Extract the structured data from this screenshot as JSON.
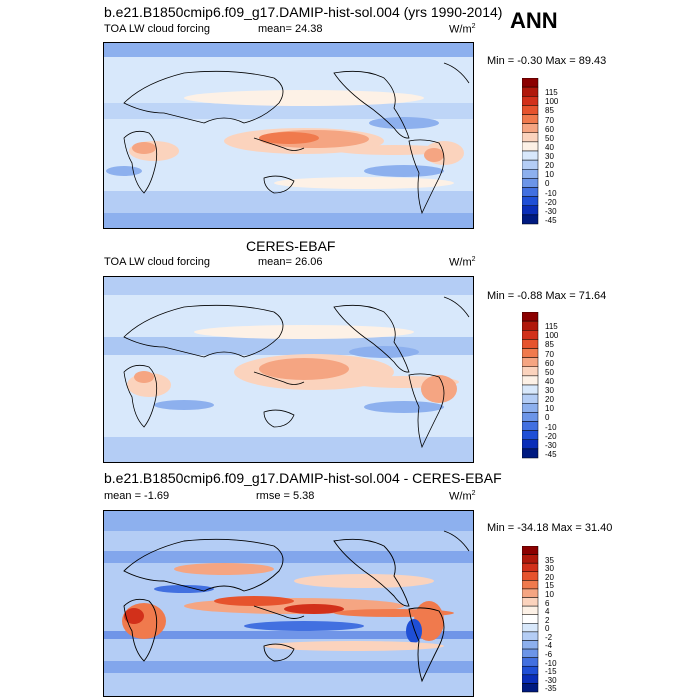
{
  "season": "ANN",
  "panels": [
    {
      "title": "b.e21.B1850cmip6.f09_g17.DAMIP-hist-sol.004 (yrs 1990-2014)",
      "left_label": "TOA LW cloud forcing",
      "center_label": "mean=  24.38",
      "units": "W/m",
      "units_sup": "2",
      "minmax": "Min = -0.30 Max =  89.43",
      "colorbar": [
        "115",
        "100",
        "85",
        "70",
        "60",
        "50",
        "40",
        "30",
        "20",
        "10",
        "0",
        "-10",
        "-20",
        "-30",
        "-45"
      ],
      "colors": [
        "#8b0000",
        "#b0180b",
        "#d2301a",
        "#e6532d",
        "#f07a4d",
        "#f5a582",
        "#fbd3bd",
        "#fdf1e6",
        "#d8e8fb",
        "#b4cdf5",
        "#8db0ee",
        "#6c95e8",
        "#4270e0",
        "#1f4fd6",
        "#0a2eb8",
        "#001a80"
      ]
    },
    {
      "title": "CERES-EBAF",
      "left_label": "TOA LW cloud forcing",
      "center_label": "mean=  26.06",
      "units": "W/m",
      "units_sup": "2",
      "minmax": "Min = -0.88 Max =  71.64",
      "colorbar": [
        "115",
        "100",
        "85",
        "70",
        "60",
        "50",
        "40",
        "30",
        "20",
        "10",
        "0",
        "-10",
        "-20",
        "-30",
        "-45"
      ],
      "colors": [
        "#8b0000",
        "#b0180b",
        "#d2301a",
        "#e6532d",
        "#f07a4d",
        "#f5a582",
        "#fbd3bd",
        "#fdf1e6",
        "#d8e8fb",
        "#b4cdf5",
        "#8db0ee",
        "#6c95e8",
        "#4270e0",
        "#1f4fd6",
        "#0a2eb8",
        "#001a80"
      ]
    },
    {
      "title": "b.e21.B1850cmip6.f09_g17.DAMIP-hist-sol.004 - CERES-EBAF",
      "left_label": "mean =  -1.69",
      "center_label": "rmse =   5.38",
      "units": "W/m",
      "units_sup": "2",
      "minmax": "Min = -34.18 Max =  31.40",
      "colorbar": [
        "35",
        "30",
        "20",
        "15",
        "10",
        "6",
        "4",
        "2",
        "0",
        "-2",
        "-4",
        "-6",
        "-10",
        "-15",
        "-30",
        "-35"
      ],
      "colors": [
        "#8b0000",
        "#b0180b",
        "#d2301a",
        "#e6532d",
        "#f07a4d",
        "#f5a582",
        "#fbd3bd",
        "#fdf1e6",
        "#ffffff",
        "#d8e8fb",
        "#b4cdf5",
        "#8db0ee",
        "#6c95e8",
        "#4270e0",
        "#1f4fd6",
        "#0a2eb8",
        "#001a80"
      ]
    }
  ]
}
